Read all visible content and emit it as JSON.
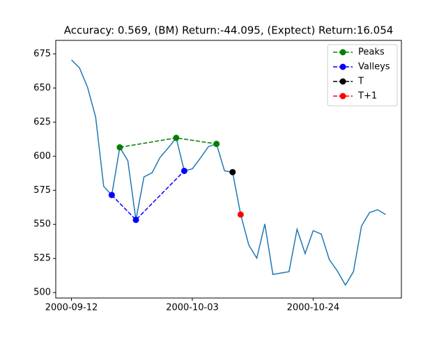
{
  "chart_data": {
    "type": "line",
    "title": "Accuracy: 0.569, (BM) Return:-44.095, (Exptect) Return:16.054",
    "xlim": [
      -1.95,
      40.95
    ],
    "xticks": [
      {
        "value": 0,
        "label": "2000-09-12"
      },
      {
        "value": 15,
        "label": "2000-10-03"
      },
      {
        "value": 30,
        "label": "2000-10-24"
      }
    ],
    "ylim": [
      496,
      684.9
    ],
    "yticks": [
      500,
      525,
      550,
      575,
      600,
      625,
      650,
      675
    ],
    "legend": "upper right",
    "series": [
      {
        "color": "#1f77b4",
        "style": "solid",
        "marker": false,
        "x": [
          0,
          1,
          2,
          3,
          4,
          5,
          6,
          7,
          8,
          9,
          10,
          11,
          12,
          13,
          14,
          15,
          16,
          17,
          18,
          19,
          20,
          21,
          22,
          23,
          24,
          25,
          26,
          27,
          28,
          29,
          30,
          31,
          32,
          33,
          34,
          35,
          36,
          37,
          38,
          39
        ],
        "values": [
          670.6,
          664.7,
          650.4,
          628.7,
          577.9,
          571.5,
          606.5,
          596.6,
          553.3,
          584.8,
          587.8,
          599.1,
          606,
          613.4,
          589.2,
          590.7,
          598.6,
          607,
          609,
          589.2,
          588.3,
          557.2,
          535,
          525.2,
          550.3,
          513.3,
          514.3,
          515.3,
          546.4,
          528.6,
          545.4,
          542.9,
          524.2,
          515.8,
          505.5,
          515.3,
          548.8,
          558.7,
          560.7,
          557.2
        ]
      },
      {
        "name": "Peaks",
        "color": "#008000",
        "style": "dashed",
        "marker": true,
        "x": [
          6,
          13,
          18
        ],
        "values": [
          606.5,
          613.4,
          609
        ]
      },
      {
        "name": "Valleys",
        "color": "#0000ff",
        "style": "dashed",
        "marker": true,
        "x": [
          5,
          8,
          14
        ],
        "values": [
          571.5,
          553.3,
          589.2
        ]
      },
      {
        "name": "T",
        "color": "#000000",
        "style": "dashed",
        "marker": true,
        "x": [
          20
        ],
        "values": [
          588.3
        ]
      },
      {
        "name": "T+1",
        "color": "#ff0000",
        "style": "dashed",
        "marker": true,
        "x": [
          21
        ],
        "values": [
          557.2
        ]
      }
    ]
  }
}
